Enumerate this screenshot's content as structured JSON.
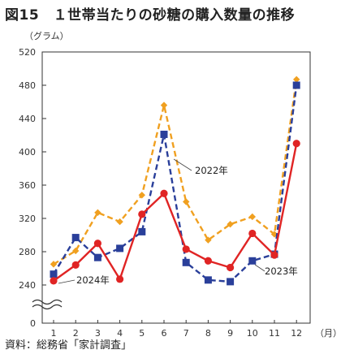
{
  "title": "図15　１世帯当たりの砂糖の購入数量の推移",
  "source": "資料：総務省「家計調査」",
  "chart_data": {
    "type": "line",
    "ylabel": "（グラム）",
    "xlabel": "（月）",
    "categories": [
      "1",
      "2",
      "3",
      "4",
      "5",
      "6",
      "7",
      "8",
      "9",
      "10",
      "11",
      "12"
    ],
    "y_ticks": [
      "520",
      "480",
      "440",
      "400",
      "360",
      "320",
      "280",
      "240",
      "0"
    ],
    "ylim": [
      240,
      520
    ],
    "axis_break": true,
    "grid": false,
    "series": [
      {
        "name": "2022年",
        "color": "#f0a020",
        "line_style": "dashed",
        "marker": "diamond",
        "values": [
          265,
          281,
          327,
          316,
          348,
          456,
          340,
          294,
          313,
          322,
          301,
          487
        ]
      },
      {
        "name": "2023年",
        "color": "#2a3f9a",
        "line_style": "dashed",
        "marker": "square",
        "values": [
          253,
          297,
          273,
          284,
          304,
          421,
          267,
          246,
          244,
          269,
          277,
          480
        ]
      },
      {
        "name": "2024年",
        "color": "#e02424",
        "line_style": "solid",
        "marker": "circle",
        "values": [
          245,
          264,
          290,
          247,
          325,
          350,
          283,
          269,
          261,
          302,
          276,
          410
        ]
      }
    ]
  }
}
